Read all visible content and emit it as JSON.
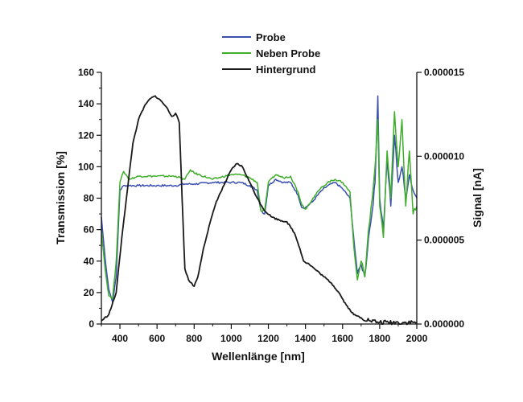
{
  "chart_data": {
    "type": "line",
    "xlabel": "Wellenlänge [nm]",
    "ylabel_left": "Transmission [%]",
    "ylabel_right": "Signal [nA]",
    "xlim": [
      300,
      2000
    ],
    "ylim_left": [
      0,
      160
    ],
    "ylim_right": [
      0,
      1.5e-05
    ],
    "x_ticks": [
      400,
      600,
      800,
      1000,
      1200,
      1400,
      1600,
      1800,
      2000
    ],
    "y_left_ticks": [
      0,
      20,
      40,
      60,
      80,
      100,
      120,
      140,
      160
    ],
    "y_right_ticks": [
      "0.000000",
      "0.000005",
      "0.000010",
      "0.000015"
    ],
    "y_right_tick_values": [
      0,
      5e-06,
      1e-05,
      1.5e-05
    ],
    "grid": false,
    "legend_position": "top-center",
    "series": [
      {
        "name": "Probe",
        "color": "#3a4fb0",
        "axis": "left",
        "points": [
          [
            300,
            68
          ],
          [
            320,
            42
          ],
          [
            340,
            22
          ],
          [
            360,
            14
          ],
          [
            380,
            30
          ],
          [
            400,
            85
          ],
          [
            420,
            88
          ],
          [
            450,
            88
          ],
          [
            500,
            88
          ],
          [
            600,
            88
          ],
          [
            700,
            88
          ],
          [
            750,
            89
          ],
          [
            800,
            89
          ],
          [
            900,
            90
          ],
          [
            1000,
            90
          ],
          [
            1050,
            90
          ],
          [
            1100,
            88
          ],
          [
            1140,
            85
          ],
          [
            1160,
            72
          ],
          [
            1180,
            70
          ],
          [
            1200,
            88
          ],
          [
            1240,
            92
          ],
          [
            1280,
            90
          ],
          [
            1320,
            90
          ],
          [
            1360,
            82
          ],
          [
            1380,
            74
          ],
          [
            1400,
            74
          ],
          [
            1440,
            78
          ],
          [
            1480,
            84
          ],
          [
            1520,
            88
          ],
          [
            1560,
            90
          ],
          [
            1600,
            86
          ],
          [
            1640,
            80
          ],
          [
            1660,
            55
          ],
          [
            1680,
            32
          ],
          [
            1700,
            38
          ],
          [
            1720,
            30
          ],
          [
            1740,
            55
          ],
          [
            1760,
            72
          ],
          [
            1775,
            90
          ],
          [
            1790,
            145
          ],
          [
            1800,
            80
          ],
          [
            1820,
            60
          ],
          [
            1840,
            105
          ],
          [
            1860,
            75
          ],
          [
            1880,
            120
          ],
          [
            1900,
            90
          ],
          [
            1920,
            100
          ],
          [
            1940,
            80
          ],
          [
            1960,
            95
          ],
          [
            1980,
            85
          ],
          [
            2000,
            80
          ]
        ]
      },
      {
        "name": "Neben Probe",
        "color": "#3fae2a",
        "axis": "left",
        "points": [
          [
            300,
            60
          ],
          [
            320,
            35
          ],
          [
            340,
            18
          ],
          [
            360,
            16
          ],
          [
            380,
            40
          ],
          [
            400,
            90
          ],
          [
            420,
            97
          ],
          [
            450,
            92
          ],
          [
            500,
            94
          ],
          [
            600,
            94
          ],
          [
            700,
            94
          ],
          [
            750,
            92
          ],
          [
            780,
            98
          ],
          [
            800,
            96
          ],
          [
            900,
            92
          ],
          [
            1000,
            95
          ],
          [
            1050,
            95
          ],
          [
            1100,
            93
          ],
          [
            1140,
            90
          ],
          [
            1160,
            72
          ],
          [
            1180,
            72
          ],
          [
            1200,
            90
          ],
          [
            1240,
            95
          ],
          [
            1280,
            93
          ],
          [
            1320,
            94
          ],
          [
            1360,
            84
          ],
          [
            1380,
            76
          ],
          [
            1400,
            73
          ],
          [
            1440,
            80
          ],
          [
            1480,
            86
          ],
          [
            1520,
            90
          ],
          [
            1560,
            92
          ],
          [
            1600,
            90
          ],
          [
            1640,
            84
          ],
          [
            1660,
            50
          ],
          [
            1680,
            28
          ],
          [
            1700,
            40
          ],
          [
            1720,
            30
          ],
          [
            1740,
            60
          ],
          [
            1760,
            80
          ],
          [
            1775,
            100
          ],
          [
            1790,
            130
          ],
          [
            1800,
            75
          ],
          [
            1820,
            55
          ],
          [
            1840,
            110
          ],
          [
            1860,
            80
          ],
          [
            1880,
            135
          ],
          [
            1900,
            100
          ],
          [
            1920,
            130
          ],
          [
            1940,
            75
          ],
          [
            1960,
            110
          ],
          [
            1980,
            70
          ],
          [
            2000,
            75
          ]
        ]
      },
      {
        "name": "Hintergrund",
        "color": "#1a1a1a",
        "axis": "left",
        "points": [
          [
            300,
            2
          ],
          [
            340,
            6
          ],
          [
            380,
            20
          ],
          [
            410,
            55
          ],
          [
            440,
            85
          ],
          [
            470,
            115
          ],
          [
            500,
            130
          ],
          [
            530,
            138
          ],
          [
            560,
            143
          ],
          [
            590,
            145
          ],
          [
            620,
            142
          ],
          [
            650,
            138
          ],
          [
            680,
            132
          ],
          [
            700,
            134
          ],
          [
            720,
            128
          ],
          [
            735,
            80
          ],
          [
            750,
            35
          ],
          [
            770,
            28
          ],
          [
            800,
            24
          ],
          [
            820,
            30
          ],
          [
            850,
            48
          ],
          [
            880,
            62
          ],
          [
            920,
            78
          ],
          [
            960,
            88
          ],
          [
            1000,
            98
          ],
          [
            1030,
            102
          ],
          [
            1060,
            100
          ],
          [
            1100,
            90
          ],
          [
            1140,
            80
          ],
          [
            1180,
            72
          ],
          [
            1220,
            68
          ],
          [
            1260,
            66
          ],
          [
            1300,
            65
          ],
          [
            1340,
            58
          ],
          [
            1370,
            48
          ],
          [
            1390,
            40
          ],
          [
            1420,
            38
          ],
          [
            1460,
            34
          ],
          [
            1500,
            30
          ],
          [
            1540,
            26
          ],
          [
            1580,
            20
          ],
          [
            1620,
            12
          ],
          [
            1660,
            6
          ],
          [
            1700,
            4
          ],
          [
            1750,
            2
          ],
          [
            1800,
            1
          ],
          [
            1900,
            1
          ],
          [
            2000,
            1
          ]
        ]
      }
    ]
  }
}
